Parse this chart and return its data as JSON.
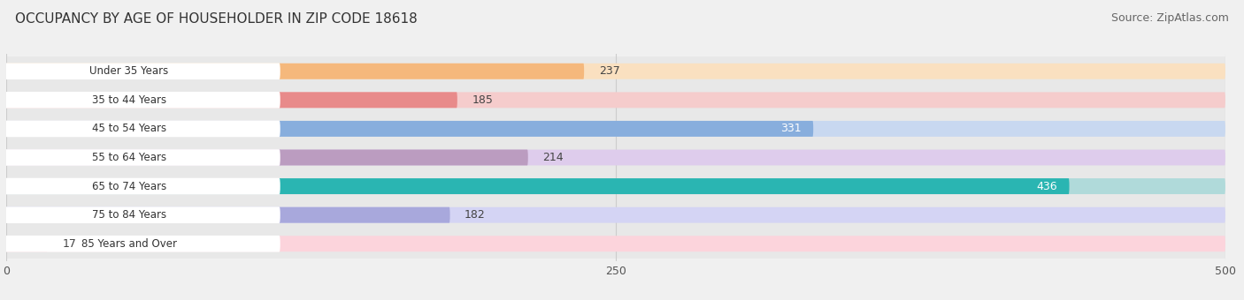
{
  "title": "OCCUPANCY BY AGE OF HOUSEHOLDER IN ZIP CODE 18618",
  "source": "Source: ZipAtlas.com",
  "categories": [
    "Under 35 Years",
    "35 to 44 Years",
    "45 to 54 Years",
    "55 to 64 Years",
    "65 to 74 Years",
    "75 to 84 Years",
    "85 Years and Over"
  ],
  "values": [
    237,
    185,
    331,
    214,
    436,
    182,
    17
  ],
  "bar_colors": [
    "#f5b87c",
    "#e88a8a",
    "#88aedd",
    "#bb9cc0",
    "#2ab5b2",
    "#a8a8dc",
    "#f4a0b5"
  ],
  "bar_bg_colors": [
    "#fae0c0",
    "#f5cccc",
    "#c8d8f0",
    "#deccec",
    "#b0dada",
    "#d4d4f4",
    "#fcd4dc"
  ],
  "label_colors": [
    "#333333",
    "#333333",
    "#ffffff",
    "#333333",
    "#ffffff",
    "#333333",
    "#333333"
  ],
  "xlim": [
    0,
    500
  ],
  "xticks": [
    0,
    250,
    500
  ],
  "background_color": "#f0f0f0",
  "bar_row_bg": "#e8e8e8",
  "title_fontsize": 11,
  "source_fontsize": 9,
  "bar_height": 0.55,
  "label_fontsize": 9
}
